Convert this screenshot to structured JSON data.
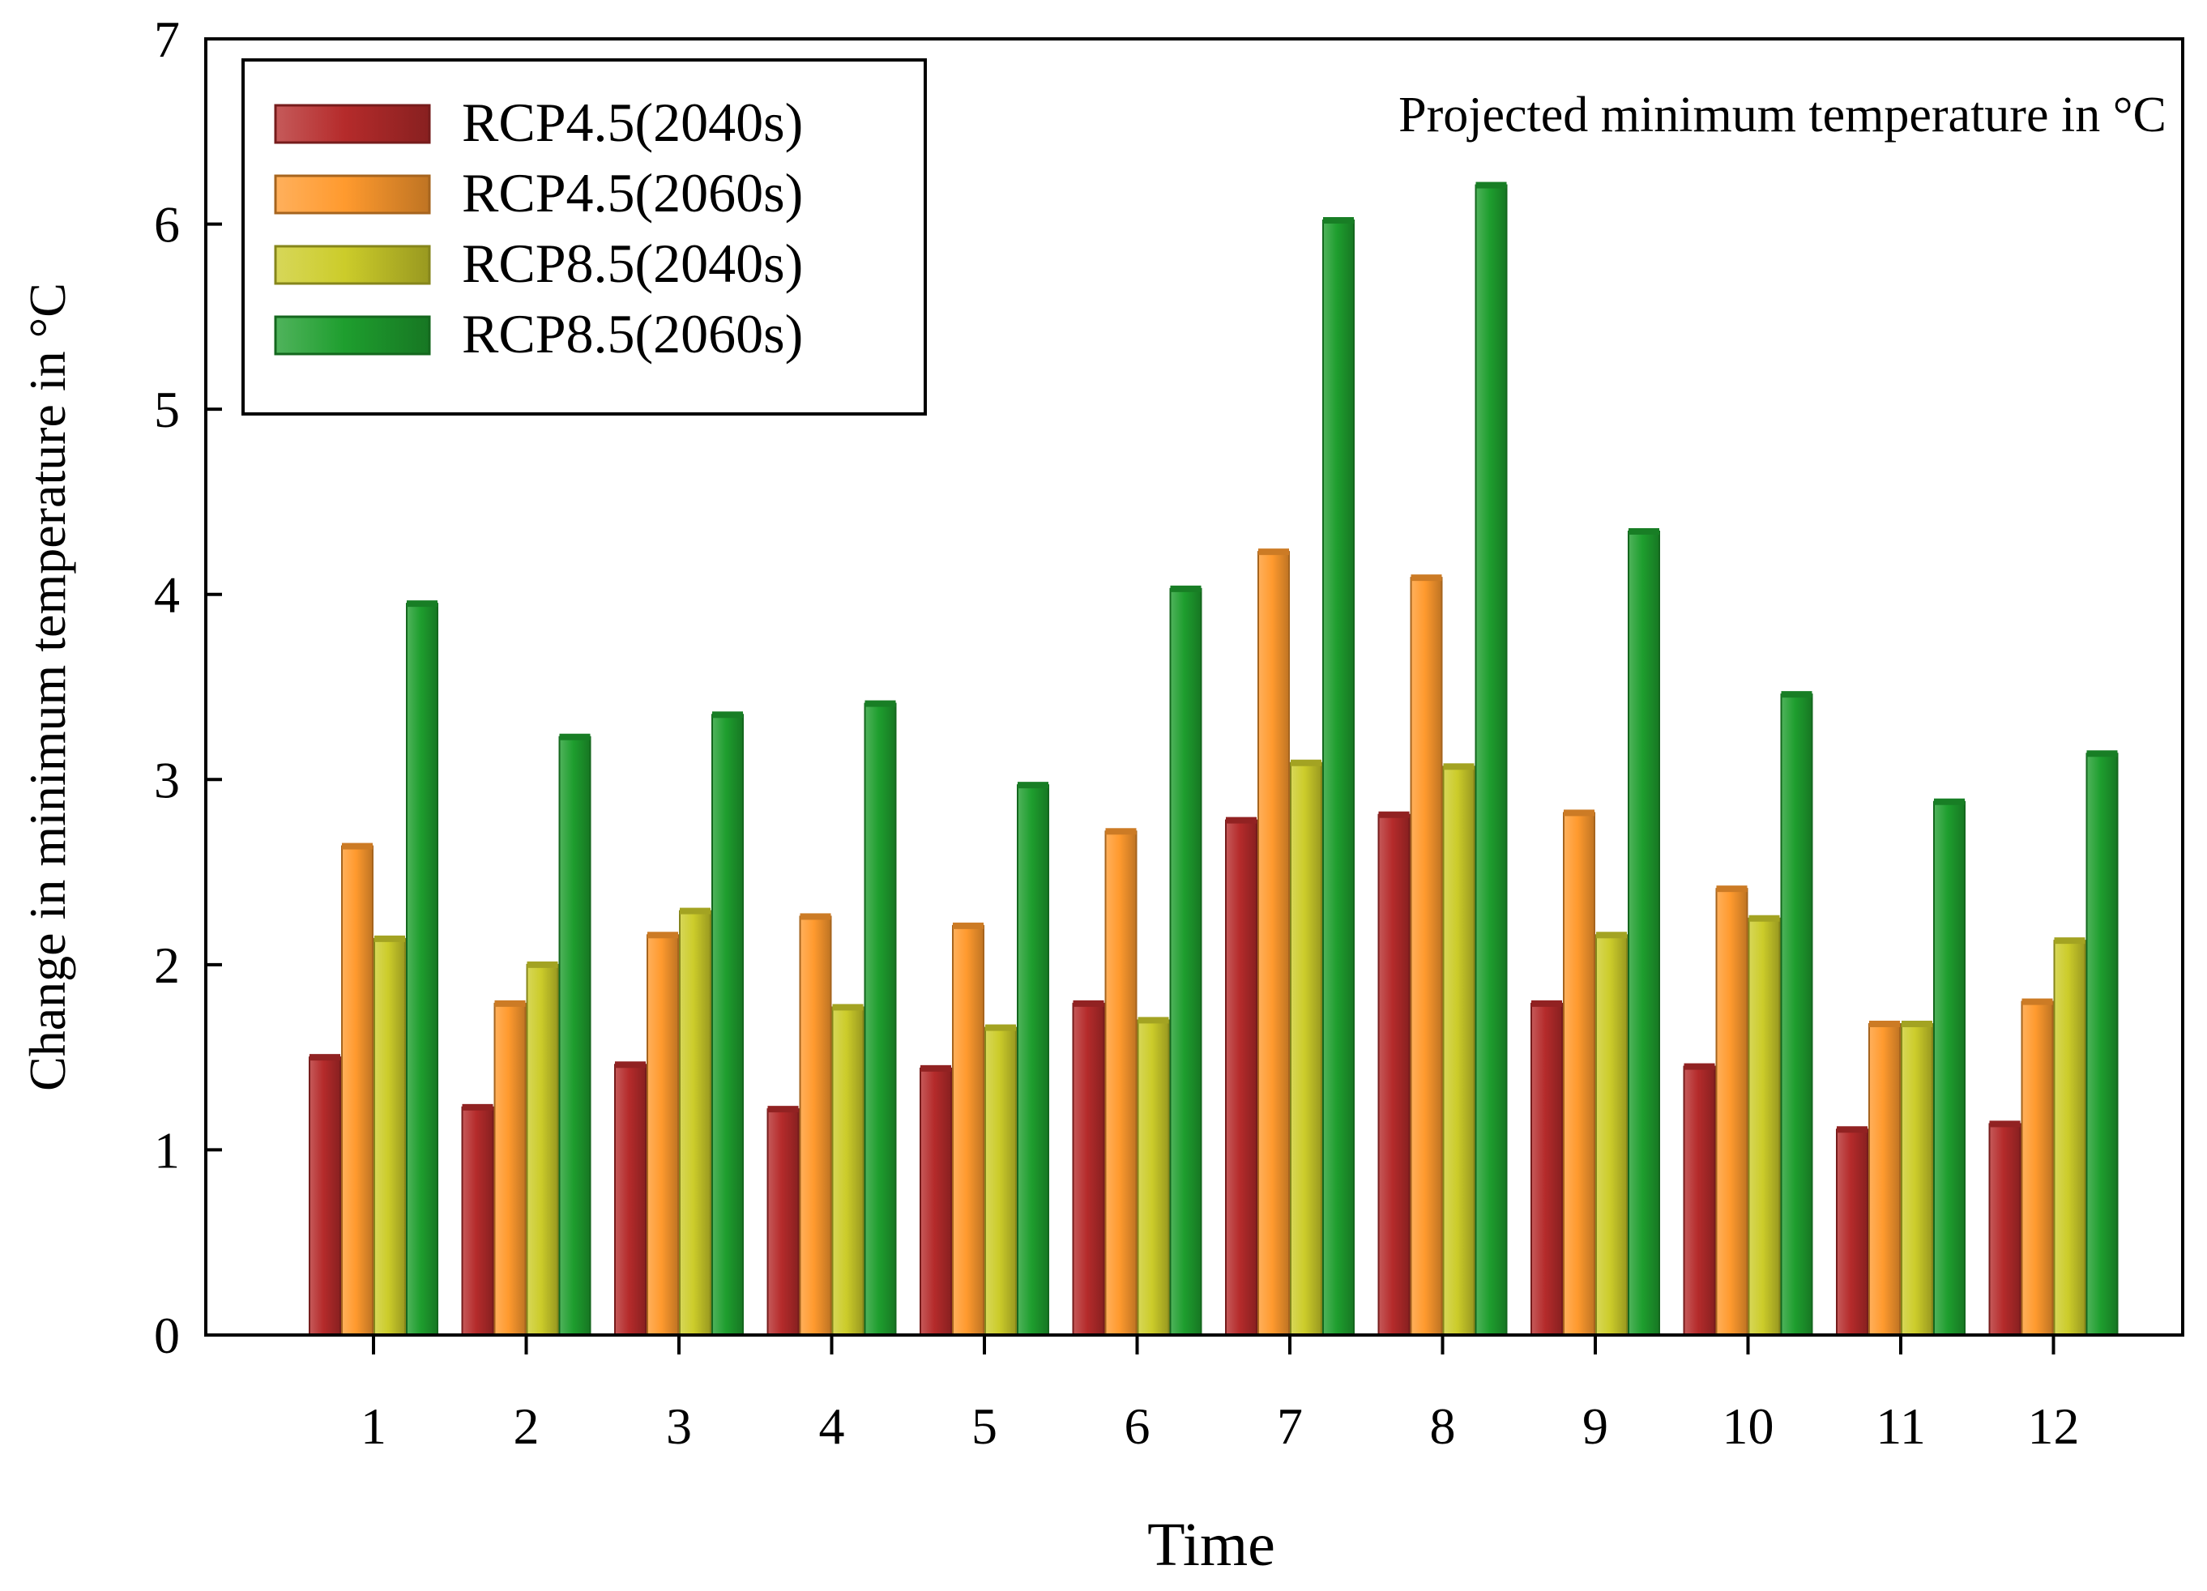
{
  "chart_data": {
    "type": "bar",
    "annotation": "Projected minimum temperature in °C",
    "xlabel": "Time",
    "ylabel": "Change in minimum temperature in °C",
    "categories": [
      "1",
      "2",
      "3",
      "4",
      "5",
      "6",
      "7",
      "8",
      "9",
      "10",
      "11",
      "12"
    ],
    "ylim": [
      0,
      7
    ],
    "yticks": [
      "0",
      "1",
      "2",
      "3",
      "4",
      "5",
      "6",
      "7"
    ],
    "legend_position": "top-left",
    "grid": false,
    "series": [
      {
        "name": "RCP4.5(2040s)",
        "color": "#b52b2b",
        "values": [
          1.5,
          1.23,
          1.46,
          1.22,
          1.44,
          1.79,
          2.78,
          2.81,
          1.79,
          1.45,
          1.11,
          1.14
        ]
      },
      {
        "name": "RCP4.5(2060s)",
        "color": "#ff9a2e",
        "values": [
          2.64,
          1.79,
          2.16,
          2.26,
          2.21,
          2.72,
          4.23,
          4.09,
          2.82,
          2.41,
          1.68,
          1.8
        ]
      },
      {
        "name": "RCP8.5(2040s)",
        "color": "#cccc2a",
        "values": [
          2.14,
          2.0,
          2.29,
          1.77,
          1.66,
          1.7,
          3.09,
          3.07,
          2.16,
          2.25,
          1.68,
          2.13
        ]
      },
      {
        "name": "RCP8.5(2060s)",
        "color": "#1e9e2e",
        "values": [
          3.95,
          3.23,
          3.35,
          3.41,
          2.97,
          4.03,
          6.02,
          6.21,
          4.34,
          3.46,
          2.88,
          3.14
        ]
      }
    ]
  }
}
